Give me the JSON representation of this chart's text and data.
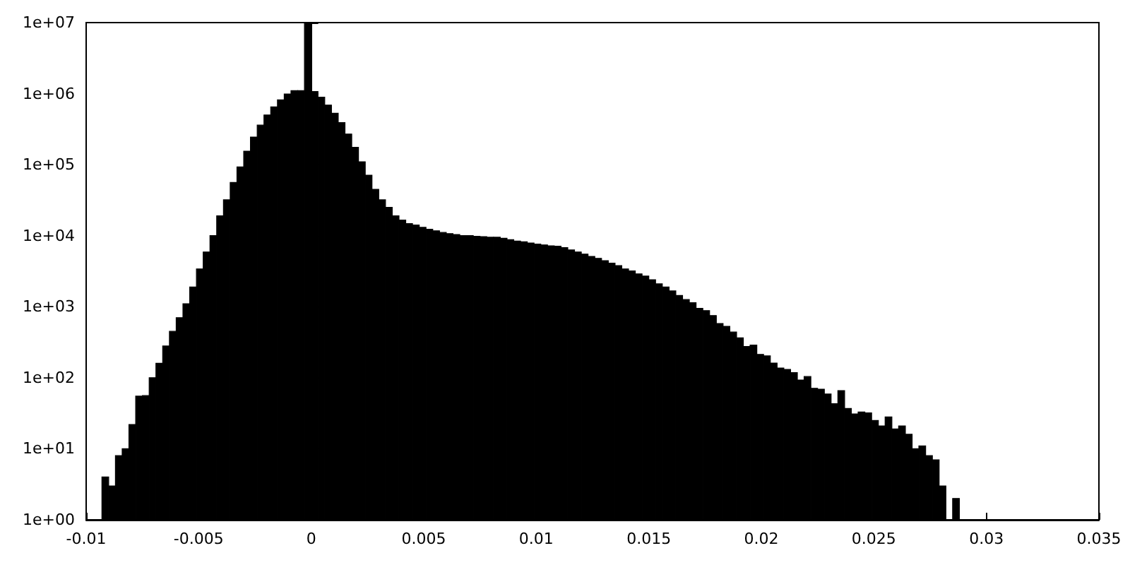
{
  "chart_data": {
    "type": "histogram",
    "color": "#000000",
    "log": "y",
    "bins": [
      -0.0093,
      -0.009,
      -0.0087,
      -0.0084,
      -0.0081,
      -0.0078,
      -0.0075,
      -0.0072,
      -0.0069,
      -0.0066,
      -0.0063,
      -0.006,
      -0.0057,
      -0.0054,
      -0.0051,
      -0.0048,
      -0.0045,
      -0.0042,
      -0.0039,
      -0.0036,
      -0.0033,
      -0.003,
      -0.0027,
      -0.0024,
      -0.0021,
      -0.0018,
      -0.0015,
      -0.0012,
      -0.0009,
      -0.0006,
      -0.0003,
      0,
      0.0003,
      0.0006,
      0.0009,
      0.0012,
      0.0015,
      0.0018,
      0.0021,
      0.0024,
      0.0027,
      0.003,
      0.0033,
      0.0036,
      0.0039,
      0.0042,
      0.0045,
      0.0048,
      0.0051,
      0.0054,
      0.0057,
      0.006,
      0.0063,
      0.0066,
      0.0069,
      0.0072,
      0.0075,
      0.0078,
      0.0081,
      0.0084,
      0.0087,
      0.009,
      0.0093,
      0.0096,
      0.0099,
      0.0102,
      0.0105,
      0.0108,
      0.0111,
      0.0114,
      0.0117,
      0.012,
      0.0123,
      0.0126,
      0.0129,
      0.0132,
      0.0135,
      0.0138,
      0.0141,
      0.0144,
      0.0147,
      0.015,
      0.0153,
      0.0156,
      0.0159,
      0.0162,
      0.0165,
      0.0168,
      0.0171,
      0.0174,
      0.0177,
      0.018,
      0.0183,
      0.0186,
      0.0189,
      0.0192,
      0.0195,
      0.0198,
      0.0201,
      0.0204,
      0.0207,
      0.021,
      0.0213,
      0.0216,
      0.0219,
      0.0222,
      0.0225,
      0.0228,
      0.0231,
      0.0234,
      0.0237,
      0.024,
      0.0243,
      0.0246,
      0.0249,
      0.0252,
      0.0255,
      0.0258,
      0.0261,
      0.0264,
      0.0267,
      0.027,
      0.0273,
      0.0276,
      0.0279,
      0.0282,
      0.0285,
      0.0288
    ],
    "values": [
      4,
      3,
      8,
      10,
      22,
      55,
      56,
      100,
      160,
      280,
      450,
      700,
      1100,
      1900,
      3400,
      5900,
      10000,
      19000,
      32000,
      56000,
      93000,
      155000,
      245000,
      360000,
      500000,
      650000,
      820000,
      990000,
      1100000,
      1100000,
      10000000,
      1070000,
      890000,
      690000,
      530000,
      390000,
      270000,
      175000,
      110000,
      71000,
      45000,
      32000,
      25000,
      19000,
      16600,
      14800,
      14100,
      13100,
      12300,
      11700,
      11100,
      10700,
      10400,
      10000,
      10000,
      9800,
      9700,
      9500,
      9500,
      9200,
      8800,
      8400,
      8200,
      7900,
      7600,
      7400,
      7200,
      7100,
      6800,
      6300,
      5900,
      5500,
      5100,
      4800,
      4450,
      4100,
      3800,
      3400,
      3200,
      2900,
      2700,
      2400,
      2100,
      1900,
      1670,
      1440,
      1260,
      1140,
      950,
      880,
      750,
      580,
      530,
      440,
      365,
      276,
      288,
      213,
      203,
      161,
      137,
      131,
      118,
      93,
      104,
      71,
      69,
      59,
      43,
      66,
      37,
      31,
      33,
      32,
      25,
      21,
      28,
      19,
      21,
      16,
      10,
      11,
      8,
      7,
      3,
      null,
      2
    ],
    "xlim": [
      -0.01,
      0.035
    ],
    "xticks": [
      -0.01,
      -0.005,
      0,
      0.005,
      0.01,
      0.015,
      0.02,
      0.025,
      0.03,
      0.035
    ],
    "ylim": [
      1,
      10000000
    ],
    "yticks": [
      {
        "value": 1,
        "label": "1e+00"
      },
      {
        "value": 10,
        "label": "1e+01"
      },
      {
        "value": 100,
        "label": "1e+02"
      },
      {
        "value": 1000,
        "label": "1e+03"
      },
      {
        "value": 10000,
        "label": "1e+04"
      },
      {
        "value": 100000,
        "label": "1e+05"
      },
      {
        "value": 1000000,
        "label": "1e+06"
      },
      {
        "value": 10000000,
        "label": "1e+07"
      }
    ]
  }
}
